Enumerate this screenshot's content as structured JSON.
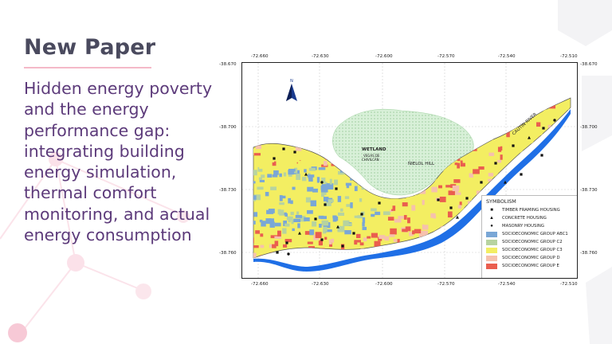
{
  "slide": {
    "tag": "New Paper",
    "title": "Hidden energy poverty and the energy performance gap: integrating building energy simulation, thermal comfort monitoring, and actual energy consumption"
  },
  "map": {
    "lon_ticks": [
      "-72.660",
      "-72.630",
      "-72.600",
      "-72.570",
      "-72.540",
      "-72.510"
    ],
    "lat_ticks": [
      "-38.670",
      "-38.700",
      "-38.730",
      "-38.760"
    ],
    "labels": {
      "wetland": "WETLAND",
      "wetland_sub1": "VEGAS DE",
      "wetland_sub2": "CHIVILCÁN",
      "hill": "ÑIELOL HILL",
      "river": "CAUTÍN RIVER"
    },
    "legend": {
      "title": "SYMBOLISM",
      "items": [
        {
          "label": "TIMBER FRAMING HOUSING",
          "symbol": "square",
          "color": "#111111"
        },
        {
          "label": "CONCRETE HOUSING",
          "symbol": "triangle",
          "color": "#111111"
        },
        {
          "label": "MASONRY HOUSING",
          "symbol": "circle",
          "color": "#111111"
        },
        {
          "label": "SOCIOECONOMIC GROUP ABC1",
          "symbol": "fill",
          "color": "#7aa7d6"
        },
        {
          "label": "SOCIOECONOMIC GROUP C2",
          "symbol": "fill",
          "color": "#b7d3a0"
        },
        {
          "label": "SOCIOECONOMIC GROUP C3",
          "symbol": "fill",
          "color": "#f3ee62"
        },
        {
          "label": "SOCIOECONOMIC GROUP D",
          "symbol": "fill",
          "color": "#f6c1ad"
        },
        {
          "label": "SOCIOECONOMIC GROUP E",
          "symbol": "fill",
          "color": "#ea5e4f"
        }
      ]
    },
    "colors": {
      "river": "#1f6fe6",
      "wetland": "#cdeccd",
      "urban_outline": "#555555",
      "grid": "#bdbdbd"
    }
  }
}
